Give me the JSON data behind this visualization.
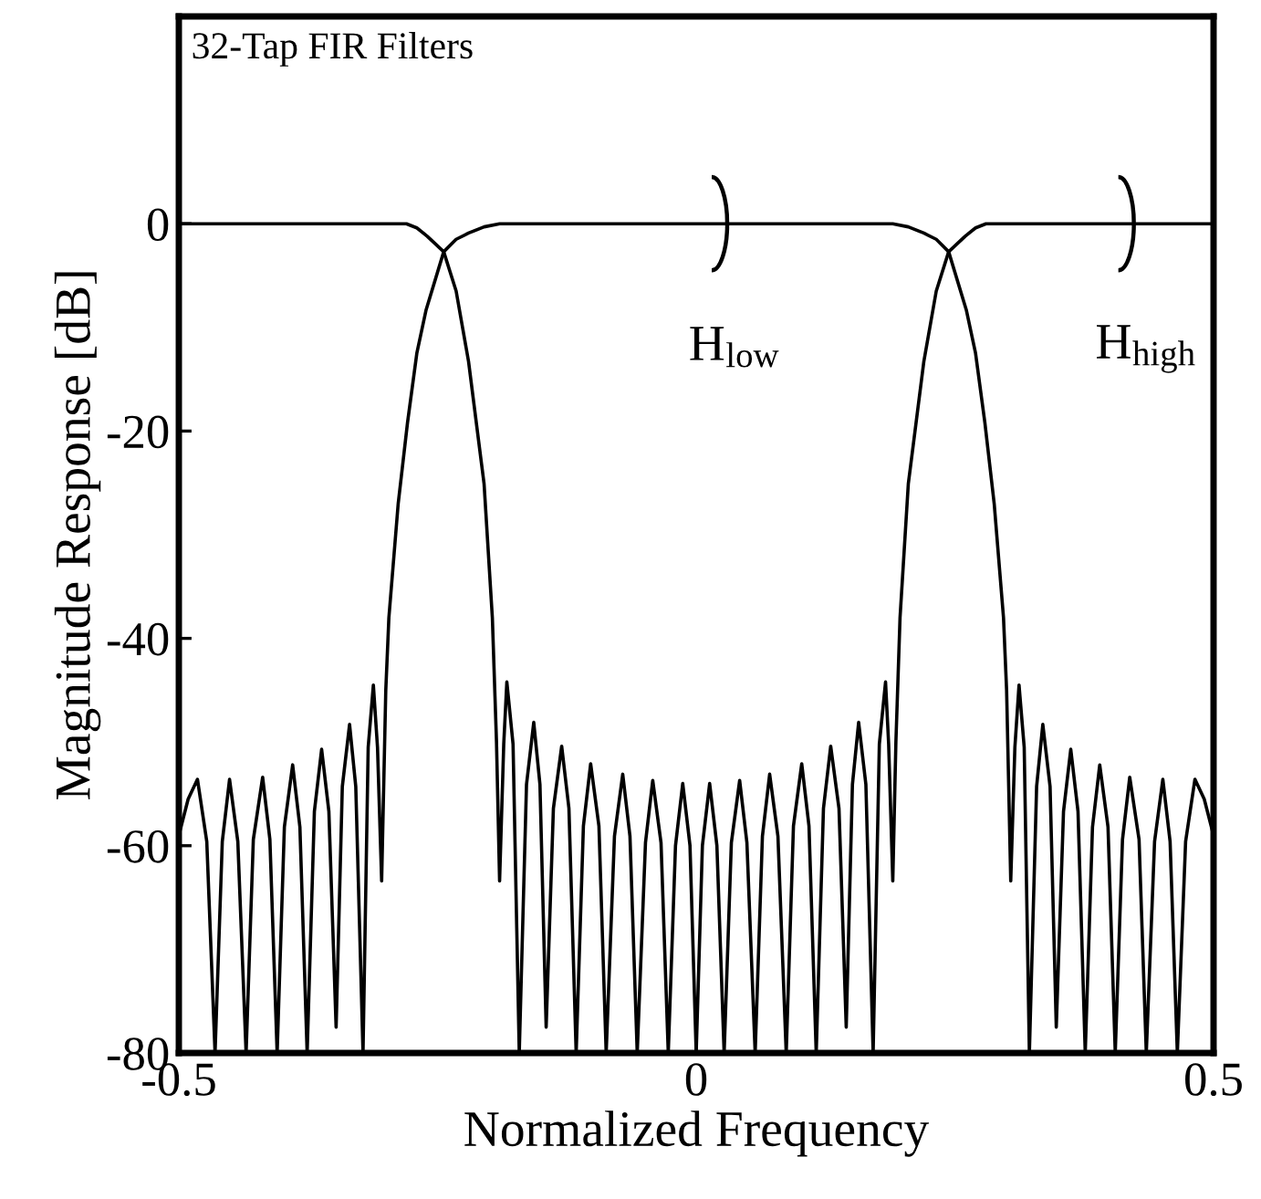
{
  "chart_data": {
    "type": "line",
    "title": "32-Tap FIR Filters",
    "xlabel": "Normalized Frequency",
    "ylabel": "Magnitude Response [dB]",
    "xlim": [
      -0.5,
      0.5
    ],
    "ylim": [
      -80,
      20
    ],
    "xticks": [
      -0.5,
      0,
      0.5
    ],
    "yticks": [
      -80,
      -60,
      -40,
      -20,
      0
    ],
    "grid": false,
    "marker": "none",
    "line_style": "solid",
    "series": [
      {
        "color": "#000000",
        "x": [
          -0.5,
          -0.491,
          -0.482,
          -0.473,
          -0.465,
          -0.458,
          -0.451,
          -0.443,
          -0.435,
          -0.428,
          -0.419,
          -0.412,
          -0.405,
          -0.398,
          -0.39,
          -0.383,
          -0.376,
          -0.369,
          -0.362,
          -0.355,
          -0.348,
          -0.342,
          -0.335,
          -0.329,
          -0.322,
          -0.317,
          -0.312,
          -0.308,
          -0.304,
          -0.3,
          -0.297,
          -0.288,
          -0.279,
          -0.27,
          -0.261,
          -0.244,
          -0.232,
          -0.22,
          -0.205,
          -0.19,
          0.19,
          0.205,
          0.22,
          0.232,
          0.244,
          0.261,
          0.27,
          0.279,
          0.288,
          0.297,
          0.3,
          0.304,
          0.308,
          0.312,
          0.317,
          0.322,
          0.329,
          0.335,
          0.342,
          0.348,
          0.355,
          0.362,
          0.369,
          0.376,
          0.383,
          0.39,
          0.398,
          0.405,
          0.412,
          0.419,
          0.428,
          0.435,
          0.443,
          0.451,
          0.458,
          0.465,
          0.473,
          0.482,
          0.491,
          0.5
        ],
        "values": [
          -59,
          -55.5,
          -53.6,
          -59.6,
          -80,
          -59.6,
          -53.6,
          -59.6,
          -80,
          -59.4,
          -53.4,
          -59.4,
          -80,
          -58.2,
          -52.2,
          -58.2,
          -80,
          -56.7,
          -50.7,
          -56.7,
          -77.5,
          -54.3,
          -48.3,
          -54.3,
          -80,
          -50.5,
          -44.5,
          -50.5,
          -63.4,
          -45,
          -38,
          -27,
          -19.2,
          -12.5,
          -8.3,
          -2.7,
          -1.5,
          -0.9,
          -0.3,
          0,
          0,
          -0.3,
          -0.9,
          -1.5,
          -2.7,
          -8.3,
          -12.5,
          -19.2,
          -27,
          -38,
          -45,
          -63.4,
          -50.5,
          -44.5,
          -50.5,
          -80,
          -54.3,
          -48.3,
          -54.3,
          -77.5,
          -56.7,
          -50.7,
          -56.7,
          -80,
          -58.2,
          -52.2,
          -58.2,
          -80,
          -59.4,
          -53.4,
          -59.4,
          -80,
          -59.6,
          -53.6,
          -59.6,
          -80,
          -59.6,
          -53.6,
          -55.5,
          -59
        ]
      },
      {
        "color": "#000000",
        "x": [
          -0.5,
          -0.28,
          -0.27,
          -0.26,
          -0.244,
          -0.232,
          -0.22,
          -0.205,
          -0.197,
          -0.193,
          -0.19,
          -0.186,
          -0.183,
          -0.177,
          -0.171,
          -0.164,
          -0.157,
          -0.151,
          -0.145,
          -0.138,
          -0.13,
          -0.123,
          -0.116,
          -0.109,
          -0.102,
          -0.094,
          -0.087,
          -0.079,
          -0.071,
          -0.064,
          -0.057,
          -0.049,
          -0.042,
          -0.034,
          -0.027,
          -0.02,
          -0.013,
          -0.006,
          0,
          0.006,
          0.013,
          0.02,
          0.027,
          0.034,
          0.042,
          0.049,
          0.057,
          0.064,
          0.071,
          0.079,
          0.087,
          0.094,
          0.102,
          0.109,
          0.116,
          0.123,
          0.13,
          0.138,
          0.145,
          0.151,
          0.157,
          0.164,
          0.171,
          0.177,
          0.183,
          0.186,
          0.19,
          0.193,
          0.197,
          0.205,
          0.22,
          0.232,
          0.244,
          0.26,
          0.27,
          0.28,
          0.5
        ],
        "values": [
          0,
          0,
          -0.4,
          -1.2,
          -2.7,
          -6.5,
          -13.3,
          -25.1,
          -38,
          -50,
          -63.4,
          -50.2,
          -44.2,
          -50.2,
          -80,
          -54.1,
          -48.1,
          -54.1,
          -77.5,
          -56.4,
          -50.4,
          -56.4,
          -80,
          -58.1,
          -52.1,
          -58.1,
          -80,
          -59.1,
          -53.1,
          -59.1,
          -80,
          -59.7,
          -53.7,
          -59.7,
          -80,
          -60,
          -54,
          -60,
          -80,
          -60,
          -54,
          -60,
          -80,
          -59.7,
          -53.7,
          -59.7,
          -80,
          -59.1,
          -53.1,
          -59.1,
          -80,
          -58.1,
          -52.1,
          -58.1,
          -80,
          -56.4,
          -50.4,
          -56.4,
          -77.5,
          -54.1,
          -48.1,
          -54.1,
          -80,
          -50.2,
          -44.2,
          -50.2,
          -63.4,
          -50,
          -38,
          -25.1,
          -13.3,
          -6.5,
          -2.7,
          -1.2,
          -0.4,
          0,
          0
        ]
      }
    ],
    "annotations": [
      {
        "text": "H$_{low}$",
        "x": 0.027,
        "y": 0
      },
      {
        "text": "H$_{high}$",
        "x": 0.42,
        "y": 0
      }
    ]
  }
}
